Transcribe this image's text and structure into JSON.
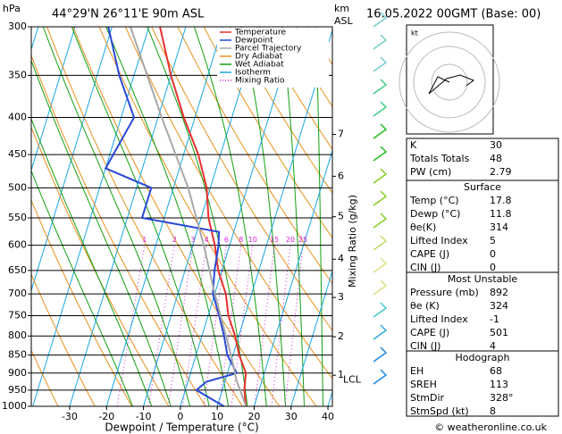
{
  "header": {
    "hpa": "hPa",
    "location": "44°29'N 26°11'E 90m ASL",
    "km": "km",
    "asl": "ASL",
    "date": "16.05.2022 00GMT (Base: 00)"
  },
  "chart_data": {
    "type": "skewt",
    "xlabel": "Dewpoint / Temperature (°C)",
    "y2label": "Mixing Ratio (g/kg)",
    "xlim": [
      -40.4,
      41.2
    ],
    "xticks": [
      -30,
      -20,
      -10,
      0,
      10,
      20,
      30,
      40
    ],
    "ylim": [
      1000,
      300
    ],
    "ylog": true,
    "yticks": [
      300,
      350,
      400,
      450,
      500,
      550,
      600,
      650,
      700,
      750,
      800,
      850,
      900,
      950,
      1000
    ],
    "series": [
      {
        "name": "Temperature",
        "color": "#e83030",
        "pressure": [
          1000,
          950,
          900,
          850,
          800,
          750,
          700,
          650,
          600,
          550,
          500,
          450,
          400,
          350,
          300
        ],
        "values": [
          17.8,
          16,
          15,
          11.7,
          9,
          5.5,
          3,
          -1,
          -4,
          -8,
          -11,
          -16,
          -23,
          -30,
          -37
        ]
      },
      {
        "name": "Dewpoint",
        "color": "#2848d8",
        "pressure": [
          1000,
          950,
          925,
          900,
          850,
          800,
          750,
          700,
          650,
          600,
          575,
          550,
          500,
          470,
          400,
          350,
          300
        ],
        "values": [
          11.8,
          3,
          5,
          12.5,
          8.5,
          6,
          3,
          -0.5,
          -2,
          -3,
          -4,
          -26,
          -26,
          -40,
          -36.5,
          -44,
          -51
        ]
      },
      {
        "name": "Parcel Trajectory",
        "color": "#a8a8a8",
        "pressure": [
          1000,
          920,
          850,
          700,
          600,
          500,
          400,
          300
        ],
        "values": [
          17.8,
          13,
          9.5,
          0,
          -7,
          -16,
          -29,
          -45
        ]
      }
    ],
    "background_lines": [
      {
        "name": "Dry Adiabat",
        "color": "#e8901c"
      },
      {
        "name": "Wet Adiabat",
        "color": "#10a010"
      },
      {
        "name": "Isotherm",
        "color": "#18a8e8"
      },
      {
        "name": "Mixing Ratio",
        "color": "#d820d8"
      }
    ],
    "mixing_ratios": [
      1,
      2,
      3,
      4,
      6,
      8,
      10,
      15,
      20,
      25
    ],
    "km_ticks": [
      {
        "value": 906,
        "label": "1"
      },
      {
        "value": 802,
        "label": "2"
      },
      {
        "value": 708,
        "label": "3"
      },
      {
        "value": 627,
        "label": "4"
      },
      {
        "value": 548,
        "label": "5"
      },
      {
        "value": 482,
        "label": "6"
      },
      {
        "value": 422,
        "label": "7"
      }
    ],
    "lcl": {
      "value": 920,
      "label": "LCL"
    },
    "hodograph_unit": "kt"
  },
  "indices": {
    "rows": [
      [
        "K",
        30
      ],
      [
        "Totals Totals",
        48
      ],
      [
        "PW (cm)",
        2.79
      ]
    ]
  },
  "surface": {
    "title": "Surface",
    "rows": [
      [
        "Temp (°C)",
        17.8
      ],
      [
        "Dewp (°C)",
        11.8
      ],
      [
        "θe(K)",
        314
      ],
      [
        "Lifted Index",
        5
      ],
      [
        "CAPE (J)",
        0
      ],
      [
        "CIN (J)",
        0
      ]
    ]
  },
  "most_unstable": {
    "title": "Most Unstable",
    "rows": [
      [
        "Pressure (mb)",
        892
      ],
      [
        "θe (K)",
        324
      ],
      [
        "Lifted Index",
        -1
      ],
      [
        "CAPE (J)",
        501
      ],
      [
        "CIN (J)",
        4
      ]
    ]
  },
  "hodograph": {
    "title": "Hodograph",
    "rows": [
      [
        "EH",
        68
      ],
      [
        "SREH",
        113
      ],
      [
        "StmDir",
        {
          "value": 328,
          "label": "328°"
        }
      ],
      [
        "StmSpd (kt)",
        8
      ]
    ]
  },
  "footer": "© weatheronline.co.uk"
}
